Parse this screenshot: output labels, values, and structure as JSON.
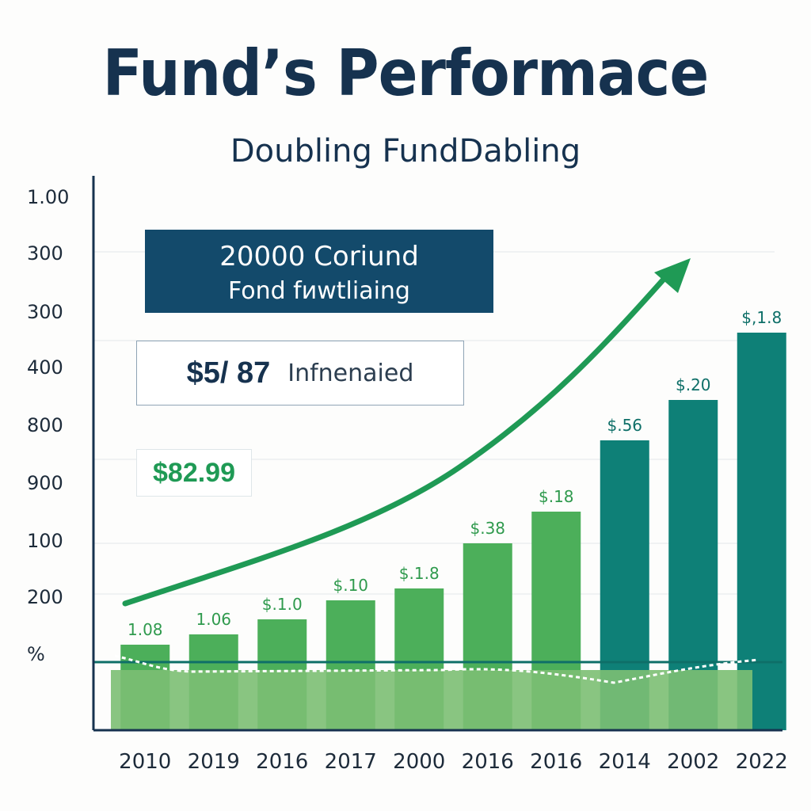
{
  "chart_data": {
    "type": "bar",
    "title": "Fund’s Performace",
    "subtitle": "Doubling FundDabling",
    "categories": [
      "2010",
      "2019",
      "2016",
      "2017",
      "2000",
      "2016",
      "2016",
      "2014",
      "2002",
      "2022"
    ],
    "values": [
      1.08,
      1.06,
      1.1,
      1.1,
      1.18,
      1.38,
      1.18,
      1.56,
      1.2,
      1.18
    ],
    "data_labels": [
      "1.08",
      "1.06",
      "$.1.0",
      "$.10",
      "$.1.8",
      "$.38",
      "$.18",
      "$.56",
      "$.20",
      "$,1.8"
    ],
    "y_tick_labels": [
      "1.00",
      "300",
      "300",
      "400",
      "800",
      "900",
      "100",
      "200",
      "%"
    ],
    "bar_colors": [
      "#4caf5a",
      "#4caf5a",
      "#4caf5a",
      "#4caf5a",
      "#4caf5a",
      "#4caf5a",
      "#4caf5a",
      "#0e8077",
      "#0e8077",
      "#0e8077"
    ],
    "trend_arrow": true,
    "grid": true
  },
  "callouts": {
    "dark_line1": "20000 Coriund",
    "dark_line2": "Fond fиwtliaing",
    "outline_amount": "$5/ 87",
    "outline_label": "Infnenaied",
    "green_amount": "$82.99"
  },
  "colors": {
    "title": "#16324f",
    "green": "#4caf5a",
    "teal": "#0e8077",
    "arrow": "#1f9a55",
    "callout_dark": "#134a6b"
  }
}
